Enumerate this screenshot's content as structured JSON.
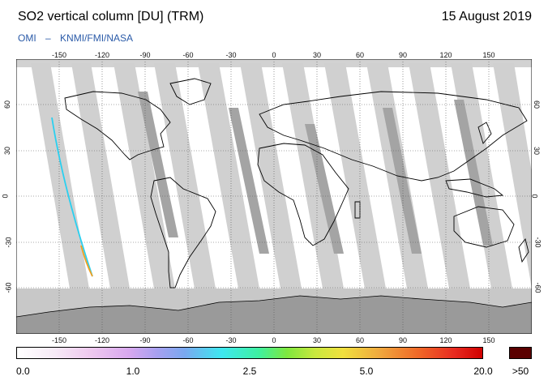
{
  "header": {
    "title": "SO2 vertical column [DU] (TRM)",
    "date": "15 August 2019",
    "credit": {
      "left": "OMI",
      "dash": "–",
      "right": "KNMI/FMI/NASA"
    }
  },
  "map": {
    "projection": "equirectangular",
    "lon_range": [
      -180,
      180
    ],
    "lat_range": [
      -90,
      90
    ],
    "lon_ticks": [
      "-150",
      "-120",
      "-90",
      "-60",
      "-30",
      "0",
      "30",
      "60",
      "90",
      "120",
      "150"
    ],
    "lat_ticks": [
      "60",
      "30",
      "0",
      "-30",
      "-60"
    ],
    "gridlines": "dotted",
    "colors": {
      "land_outline": "#000000",
      "no_data": "#c8c8c8",
      "swath_gap": "#9a9a9a",
      "background": "#ffffff"
    }
  },
  "colorbar": {
    "labels": [
      "0.0",
      "1.0",
      "2.5",
      "5.0",
      "20.0"
    ],
    "over_label": ">50",
    "over_color": "#5a0000"
  }
}
